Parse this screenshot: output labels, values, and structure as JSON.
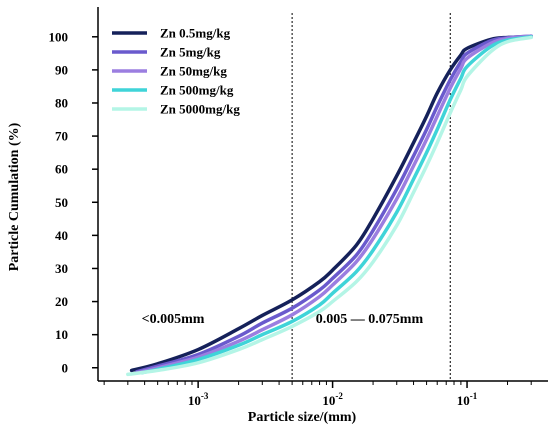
{
  "chart_data": {
    "type": "line",
    "title": "",
    "xlabel": "Particle size/(mm)",
    "ylabel": "Particle Cumulation (%)",
    "x_scale": "log",
    "xlim": [
      0.00018,
      0.4
    ],
    "ylim": [
      -4,
      109
    ],
    "x_ticks": [
      {
        "value": 0.001,
        "base": "10",
        "exp": "-3"
      },
      {
        "value": 0.01,
        "base": "10",
        "exp": "-2"
      },
      {
        "value": 0.1,
        "base": "10",
        "exp": "-1"
      }
    ],
    "y_ticks": [
      0,
      10,
      20,
      30,
      40,
      50,
      60,
      70,
      80,
      90,
      100
    ],
    "grid": false,
    "legend_position": "top-left",
    "reference_lines": [
      0.005,
      0.075
    ],
    "annotations": [
      {
        "text": "<0.005mm",
        "x": 0.00038,
        "y": 15
      },
      {
        "text": "0.005 — 0.075mm",
        "x": 0.0075,
        "y": 15
      }
    ],
    "series": [
      {
        "name": "Zn 0.5mg/kg",
        "color": "#15215a",
        "points": [
          [
            0.00032,
            -0.8
          ],
          [
            0.0005,
            1.2
          ],
          [
            0.001,
            5.5
          ],
          [
            0.002,
            11.8
          ],
          [
            0.003,
            15.8
          ],
          [
            0.005,
            20.5
          ],
          [
            0.008,
            26
          ],
          [
            0.01,
            29.5
          ],
          [
            0.015,
            37
          ],
          [
            0.02,
            45
          ],
          [
            0.03,
            58
          ],
          [
            0.04,
            68
          ],
          [
            0.05,
            76
          ],
          [
            0.06,
            83
          ],
          [
            0.075,
            90
          ],
          [
            0.09,
            94.5
          ],
          [
            0.1,
            96.5
          ],
          [
            0.15,
            99.2
          ],
          [
            0.2,
            99.8
          ],
          [
            0.3,
            100
          ]
        ]
      },
      {
        "name": "Zn 5mg/kg",
        "color": "#6a5acd",
        "points": [
          [
            0.00035,
            -1.2
          ],
          [
            0.0005,
            0.5
          ],
          [
            0.001,
            4
          ],
          [
            0.002,
            9.5
          ],
          [
            0.003,
            13.5
          ],
          [
            0.005,
            18
          ],
          [
            0.008,
            23.5
          ],
          [
            0.01,
            27
          ],
          [
            0.015,
            34
          ],
          [
            0.02,
            41.5
          ],
          [
            0.03,
            54
          ],
          [
            0.04,
            64
          ],
          [
            0.05,
            72
          ],
          [
            0.06,
            79
          ],
          [
            0.075,
            87
          ],
          [
            0.09,
            92.5
          ],
          [
            0.1,
            95
          ],
          [
            0.15,
            98.8
          ],
          [
            0.2,
            99.7
          ],
          [
            0.3,
            100.2
          ]
        ]
      },
      {
        "name": "Zn 50mg/kg",
        "color": "#9b7ee0",
        "points": [
          [
            0.00035,
            -1.5
          ],
          [
            0.0005,
            0
          ],
          [
            0.001,
            3.2
          ],
          [
            0.002,
            8
          ],
          [
            0.003,
            11.5
          ],
          [
            0.005,
            16
          ],
          [
            0.008,
            21.5
          ],
          [
            0.01,
            25
          ],
          [
            0.015,
            32
          ],
          [
            0.02,
            39
          ],
          [
            0.03,
            51
          ],
          [
            0.04,
            61
          ],
          [
            0.05,
            69
          ],
          [
            0.06,
            76
          ],
          [
            0.075,
            84.5
          ],
          [
            0.09,
            90.5
          ],
          [
            0.1,
            93.5
          ],
          [
            0.15,
            98
          ],
          [
            0.2,
            99.5
          ],
          [
            0.3,
            100.2
          ]
        ]
      },
      {
        "name": "Zn 500mg/kg",
        "color": "#3fd4d8",
        "points": [
          [
            0.00038,
            -1.5
          ],
          [
            0.0005,
            -0.5
          ],
          [
            0.001,
            2.5
          ],
          [
            0.002,
            6.8
          ],
          [
            0.003,
            10
          ],
          [
            0.005,
            14
          ],
          [
            0.008,
            19
          ],
          [
            0.01,
            22.5
          ],
          [
            0.015,
            29
          ],
          [
            0.02,
            35.5
          ],
          [
            0.03,
            47
          ],
          [
            0.04,
            57
          ],
          [
            0.05,
            65
          ],
          [
            0.06,
            72
          ],
          [
            0.075,
            81
          ],
          [
            0.09,
            87.5
          ],
          [
            0.1,
            91
          ],
          [
            0.15,
            97
          ],
          [
            0.2,
            99
          ],
          [
            0.3,
            100
          ]
        ]
      },
      {
        "name": "Zn 5000mg/kg",
        "color": "#b4f5e6",
        "points": [
          [
            0.0003,
            -2
          ],
          [
            0.0005,
            -0.8
          ],
          [
            0.001,
            1.5
          ],
          [
            0.002,
            5.5
          ],
          [
            0.003,
            8.5
          ],
          [
            0.005,
            12.5
          ],
          [
            0.008,
            17
          ],
          [
            0.01,
            20
          ],
          [
            0.015,
            26
          ],
          [
            0.02,
            32
          ],
          [
            0.03,
            43
          ],
          [
            0.04,
            53
          ],
          [
            0.05,
            61
          ],
          [
            0.06,
            68
          ],
          [
            0.075,
            77
          ],
          [
            0.09,
            84
          ],
          [
            0.1,
            88
          ],
          [
            0.15,
            95.5
          ],
          [
            0.2,
            98.5
          ],
          [
            0.3,
            99.8
          ]
        ]
      }
    ]
  }
}
